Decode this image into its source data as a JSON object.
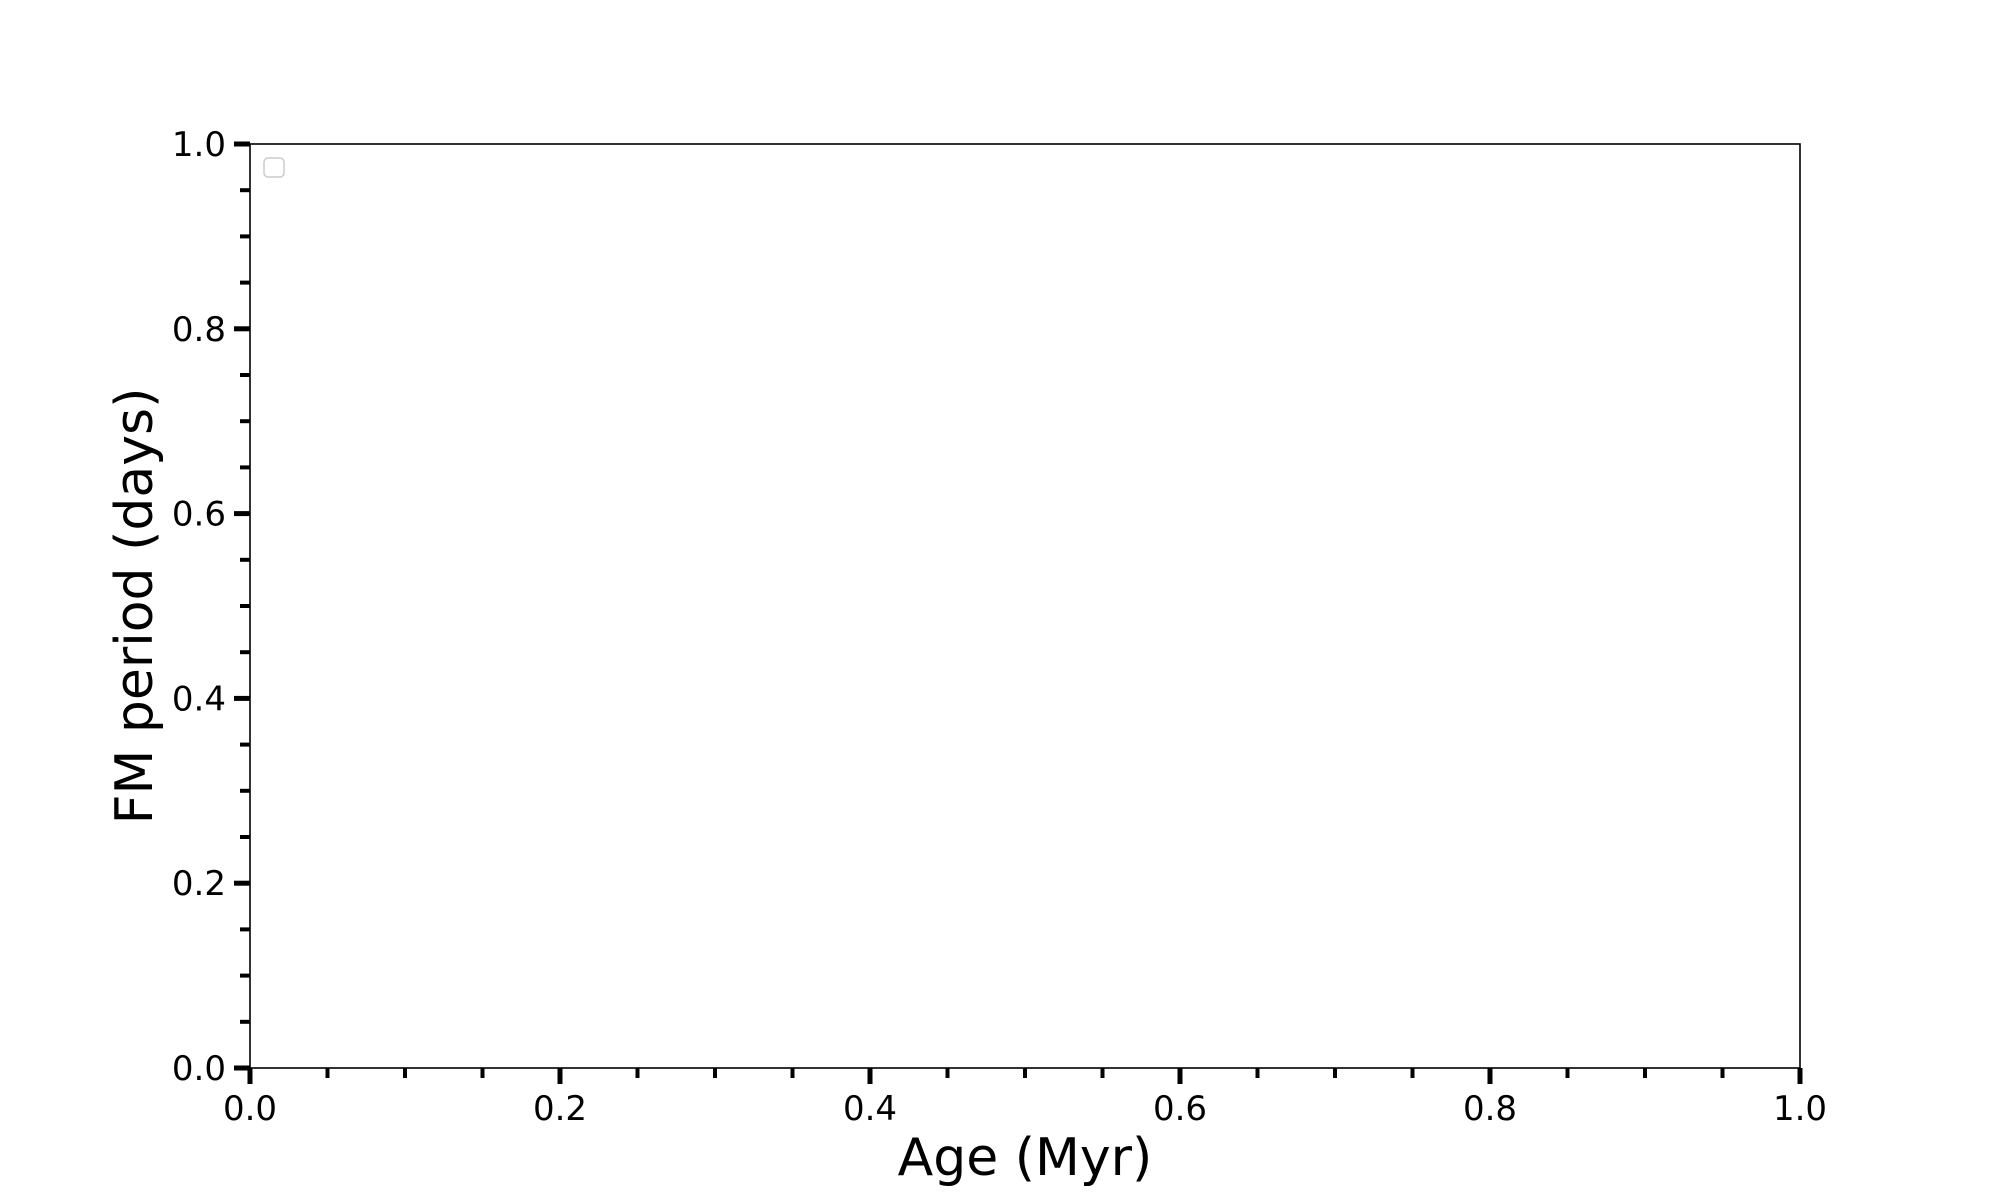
{
  "chart_data": {
    "type": "scatter",
    "title": "",
    "xlabel": "Age (Myr)",
    "ylabel": "FM period (days)",
    "xlim": [
      0.0,
      1.0
    ],
    "ylim": [
      0.0,
      1.0
    ],
    "xticks": [
      "0.0",
      "0.2",
      "0.4",
      "0.6",
      "0.8",
      "1.0"
    ],
    "yticks": [
      "0.0",
      "0.2",
      "0.4",
      "0.6",
      "0.8",
      "1.0"
    ],
    "minor_tick_step": 0.05,
    "series": [],
    "grid": false,
    "legend": {
      "placement": "top-left",
      "entries": []
    },
    "colors": {
      "axes": "#000000",
      "legend_border": "#cccccc"
    }
  }
}
